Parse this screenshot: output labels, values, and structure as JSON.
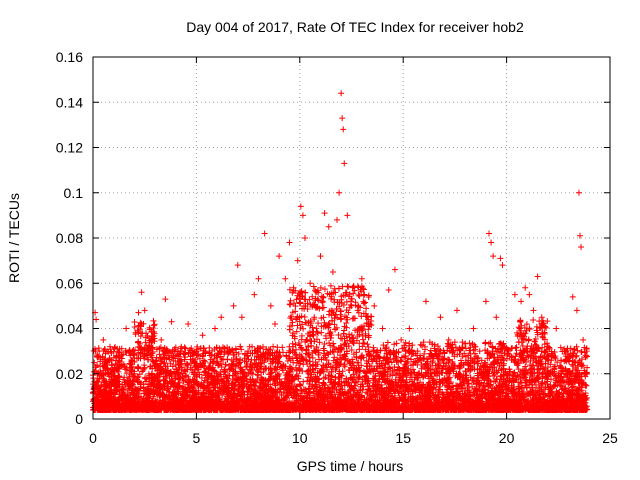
{
  "chart_data": {
    "type": "scatter",
    "title": "Day 004 of 2017, Rate Of TEC Index for receiver hob2",
    "xlabel": "GPS time / hours",
    "ylabel": "ROTI / TECUs",
    "xlim": [
      0,
      25
    ],
    "ylim": [
      0,
      0.16
    ],
    "x_ticks": [
      0,
      5,
      10,
      15,
      20,
      25
    ],
    "x_tick_labels": [
      "0",
      "5",
      "10",
      "15",
      "20",
      "25"
    ],
    "y_ticks": [
      0,
      0.02,
      0.04,
      0.06,
      0.08,
      0.1,
      0.12,
      0.14,
      0.16
    ],
    "y_tick_labels": [
      "0",
      "0.02",
      "0.04",
      "0.06",
      "0.08",
      "0.1",
      "0.12",
      "0.14",
      "0.16"
    ],
    "grid": true,
    "marker": "+",
    "color": "#ff0000",
    "points": [
      [
        0.05,
        0.012
      ],
      [
        0.1,
        0.047
      ],
      [
        0.15,
        0.044
      ],
      [
        0.2,
        0.02
      ],
      [
        0.3,
        0.03
      ],
      [
        0.4,
        0.015
      ],
      [
        0.5,
        0.035
      ],
      [
        0.7,
        0.01
      ],
      [
        0.9,
        0.024
      ],
      [
        1.1,
        0.018
      ],
      [
        1.3,
        0.012
      ],
      [
        1.6,
        0.04
      ],
      [
        1.8,
        0.028
      ],
      [
        2.0,
        0.02
      ],
      [
        2.2,
        0.047
      ],
      [
        2.35,
        0.056
      ],
      [
        2.5,
        0.048
      ],
      [
        2.6,
        0.03
      ],
      [
        2.8,
        0.015
      ],
      [
        3.0,
        0.012
      ],
      [
        3.3,
        0.035
      ],
      [
        3.5,
        0.053
      ],
      [
        3.8,
        0.043
      ],
      [
        4.0,
        0.02
      ],
      [
        4.3,
        0.03
      ],
      [
        4.6,
        0.042
      ],
      [
        4.9,
        0.025
      ],
      [
        5.1,
        0.015
      ],
      [
        5.3,
        0.037
      ],
      [
        5.6,
        0.022
      ],
      [
        5.9,
        0.04
      ],
      [
        6.2,
        0.045
      ],
      [
        6.5,
        0.03
      ],
      [
        6.8,
        0.05
      ],
      [
        7.0,
        0.068
      ],
      [
        7.2,
        0.045
      ],
      [
        7.5,
        0.03
      ],
      [
        7.8,
        0.055
      ],
      [
        8.0,
        0.062
      ],
      [
        8.3,
        0.082
      ],
      [
        8.6,
        0.05
      ],
      [
        8.8,
        0.042
      ],
      [
        9.0,
        0.072
      ],
      [
        9.3,
        0.062
      ],
      [
        9.5,
        0.078
      ],
      [
        9.7,
        0.058
      ],
      [
        9.9,
        0.07
      ],
      [
        10.05,
        0.094
      ],
      [
        10.15,
        0.09
      ],
      [
        10.25,
        0.08
      ],
      [
        10.5,
        0.06
      ],
      [
        10.7,
        0.045
      ],
      [
        11.0,
        0.072
      ],
      [
        11.2,
        0.091
      ],
      [
        11.4,
        0.085
      ],
      [
        11.6,
        0.065
      ],
      [
        11.8,
        0.088
      ],
      [
        11.9,
        0.1
      ],
      [
        12.0,
        0.144
      ],
      [
        12.05,
        0.133
      ],
      [
        12.1,
        0.128
      ],
      [
        12.15,
        0.113
      ],
      [
        12.3,
        0.09
      ],
      [
        12.5,
        0.05
      ],
      [
        12.8,
        0.048
      ],
      [
        13.0,
        0.062
      ],
      [
        13.3,
        0.045
      ],
      [
        13.6,
        0.05
      ],
      [
        14.0,
        0.04
      ],
      [
        14.3,
        0.057
      ],
      [
        14.6,
        0.066
      ],
      [
        14.9,
        0.035
      ],
      [
        15.3,
        0.04
      ],
      [
        15.7,
        0.03
      ],
      [
        16.1,
        0.052
      ],
      [
        16.4,
        0.028
      ],
      [
        16.8,
        0.045
      ],
      [
        17.2,
        0.035
      ],
      [
        17.6,
        0.048
      ],
      [
        18.0,
        0.025
      ],
      [
        18.4,
        0.04
      ],
      [
        18.7,
        0.03
      ],
      [
        19.0,
        0.052
      ],
      [
        19.15,
        0.082
      ],
      [
        19.25,
        0.078
      ],
      [
        19.35,
        0.072
      ],
      [
        19.5,
        0.045
      ],
      [
        19.7,
        0.071
      ],
      [
        19.8,
        0.068
      ],
      [
        20.1,
        0.03
      ],
      [
        20.4,
        0.055
      ],
      [
        20.7,
        0.052
      ],
      [
        20.9,
        0.058
      ],
      [
        21.1,
        0.055
      ],
      [
        21.3,
        0.048
      ],
      [
        21.5,
        0.063
      ],
      [
        21.7,
        0.045
      ],
      [
        22.0,
        0.032
      ],
      [
        22.4,
        0.04
      ],
      [
        22.8,
        0.03
      ],
      [
        23.2,
        0.054
      ],
      [
        23.4,
        0.048
      ],
      [
        23.5,
        0.1
      ],
      [
        23.55,
        0.081
      ],
      [
        23.6,
        0.076
      ],
      [
        23.7,
        0.035
      ],
      [
        23.8,
        0.02
      ]
    ]
  }
}
